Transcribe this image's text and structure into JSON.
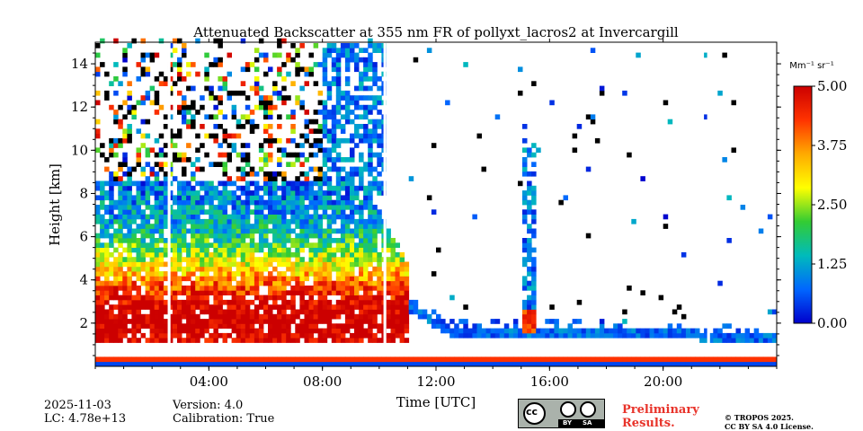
{
  "chart_data": {
    "type": "heatmap",
    "title": "Attenuated Backscatter at 355 nm FR of pollyxt_lacros2 at Invercargill",
    "xlabel": "Time [UTC]",
    "ylabel": "Height [km]",
    "xlim_hours": [
      0,
      24
    ],
    "ylim_km": [
      0,
      15
    ],
    "x_ticks": [
      {
        "hour": 4,
        "label": "04:00"
      },
      {
        "hour": 8,
        "label": "08:00"
      },
      {
        "hour": 12,
        "label": "12:00"
      },
      {
        "hour": 16,
        "label": "16:00"
      },
      {
        "hour": 20,
        "label": "20:00"
      }
    ],
    "y_ticks": [
      {
        "value": 2,
        "label": "2"
      },
      {
        "value": 4,
        "label": "4"
      },
      {
        "value": 6,
        "label": "6"
      },
      {
        "value": 8,
        "label": "8"
      },
      {
        "value": 10,
        "label": "10"
      },
      {
        "value": 12,
        "label": "12"
      },
      {
        "value": 14,
        "label": "14"
      }
    ],
    "colorbar": {
      "unit_label": "Mm⁻¹ sr⁻¹",
      "min": 0.0,
      "max": 5.0,
      "colormap": [
        "#0000cc",
        "#0066ff",
        "#00bbbb",
        "#33cc33",
        "#ffff00",
        "#ffaa00",
        "#ff3300",
        "#cc0000"
      ],
      "ticks": [
        {
          "value": 0.0,
          "label": "0.00"
        },
        {
          "value": 1.25,
          "label": "1.25"
        },
        {
          "value": 2.5,
          "label": "2.50"
        },
        {
          "value": 3.75,
          "label": "3.75"
        },
        {
          "value": 5.0,
          "label": "5.00"
        }
      ]
    },
    "no_data_gaps_hours": [
      [
        2.55,
        2.65
      ],
      [
        10.15,
        10.25
      ],
      [
        21.55,
        21.65
      ]
    ],
    "features": [
      {
        "name": "boundary_layer_aerosol",
        "hour_start": 0,
        "hour_end": 11,
        "top_km": 8.5,
        "peak_value": 4.5
      },
      {
        "name": "noise_high_altitude",
        "hour_start": 0,
        "hour_end": 10,
        "bottom_km": 8,
        "top_km": 15
      },
      {
        "name": "cirrus_cloud",
        "hour_start": 8,
        "hour_end": 10.2,
        "bottom_km": 8,
        "top_km": 15
      },
      {
        "name": "low_cloud_layer",
        "hour_start": 11,
        "hour_end": 24,
        "height_km": 1.6
      },
      {
        "name": "cloud_column",
        "hour_start": 15.0,
        "hour_end": 15.5,
        "bottom_km": 1.5,
        "top_km": 10.5
      },
      {
        "name": "near_surface_layer",
        "hour_start": 0,
        "hour_end": 24,
        "bottom_km": 0,
        "top_km": 0.5
      }
    ]
  },
  "footer": {
    "date": "2025-11-03",
    "lc": "LC: 4.78e+13",
    "version": "Version: 4.0",
    "calibration": "Calibration: True",
    "preliminary_line1": "Preliminary",
    "preliminary_line2": "Results.",
    "license_line1": "© TROPOS 2025.",
    "license_line2": "CC BY SA 4.0 License.",
    "cc_badge": {
      "cc": "cc",
      "by": "BY",
      "sa": "SA"
    }
  }
}
